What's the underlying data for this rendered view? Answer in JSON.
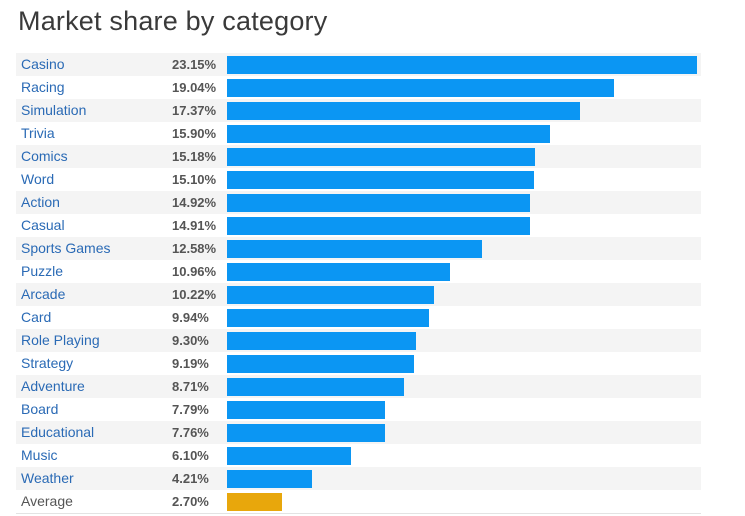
{
  "chart_data": {
    "type": "bar",
    "orientation": "horizontal",
    "title": "Market share by category",
    "categories": [
      "Casino",
      "Racing",
      "Simulation",
      "Trivia",
      "Comics",
      "Word",
      "Action",
      "Casual",
      "Sports Games",
      "Puzzle",
      "Arcade",
      "Card",
      "Role Playing",
      "Strategy",
      "Adventure",
      "Board",
      "Educational",
      "Music",
      "Weather",
      "Average"
    ],
    "values": [
      23.15,
      19.04,
      17.37,
      15.9,
      15.18,
      15.1,
      14.92,
      14.91,
      12.58,
      10.96,
      10.22,
      9.94,
      9.3,
      9.19,
      8.71,
      7.79,
      7.76,
      6.1,
      4.21,
      2.7
    ],
    "value_labels": [
      "23.15%",
      "19.04%",
      "17.37%",
      "15.90%",
      "15.18%",
      "15.10%",
      "14.92%",
      "14.91%",
      "12.58%",
      "10.96%",
      "10.22%",
      "9.94%",
      "9.30%",
      "9.19%",
      "8.71%",
      "7.79%",
      "7.76%",
      "6.10%",
      "4.21%",
      "2.70%"
    ],
    "xlim": [
      0,
      23.15
    ],
    "grid": false,
    "colors": {
      "bar": "#0b96f3",
      "highlight": "#e8a70c",
      "category_text": "#2a6ab5",
      "highlight_text": "#555555",
      "row_alt": "#f4f4f4"
    },
    "highlight_category": "Average"
  }
}
